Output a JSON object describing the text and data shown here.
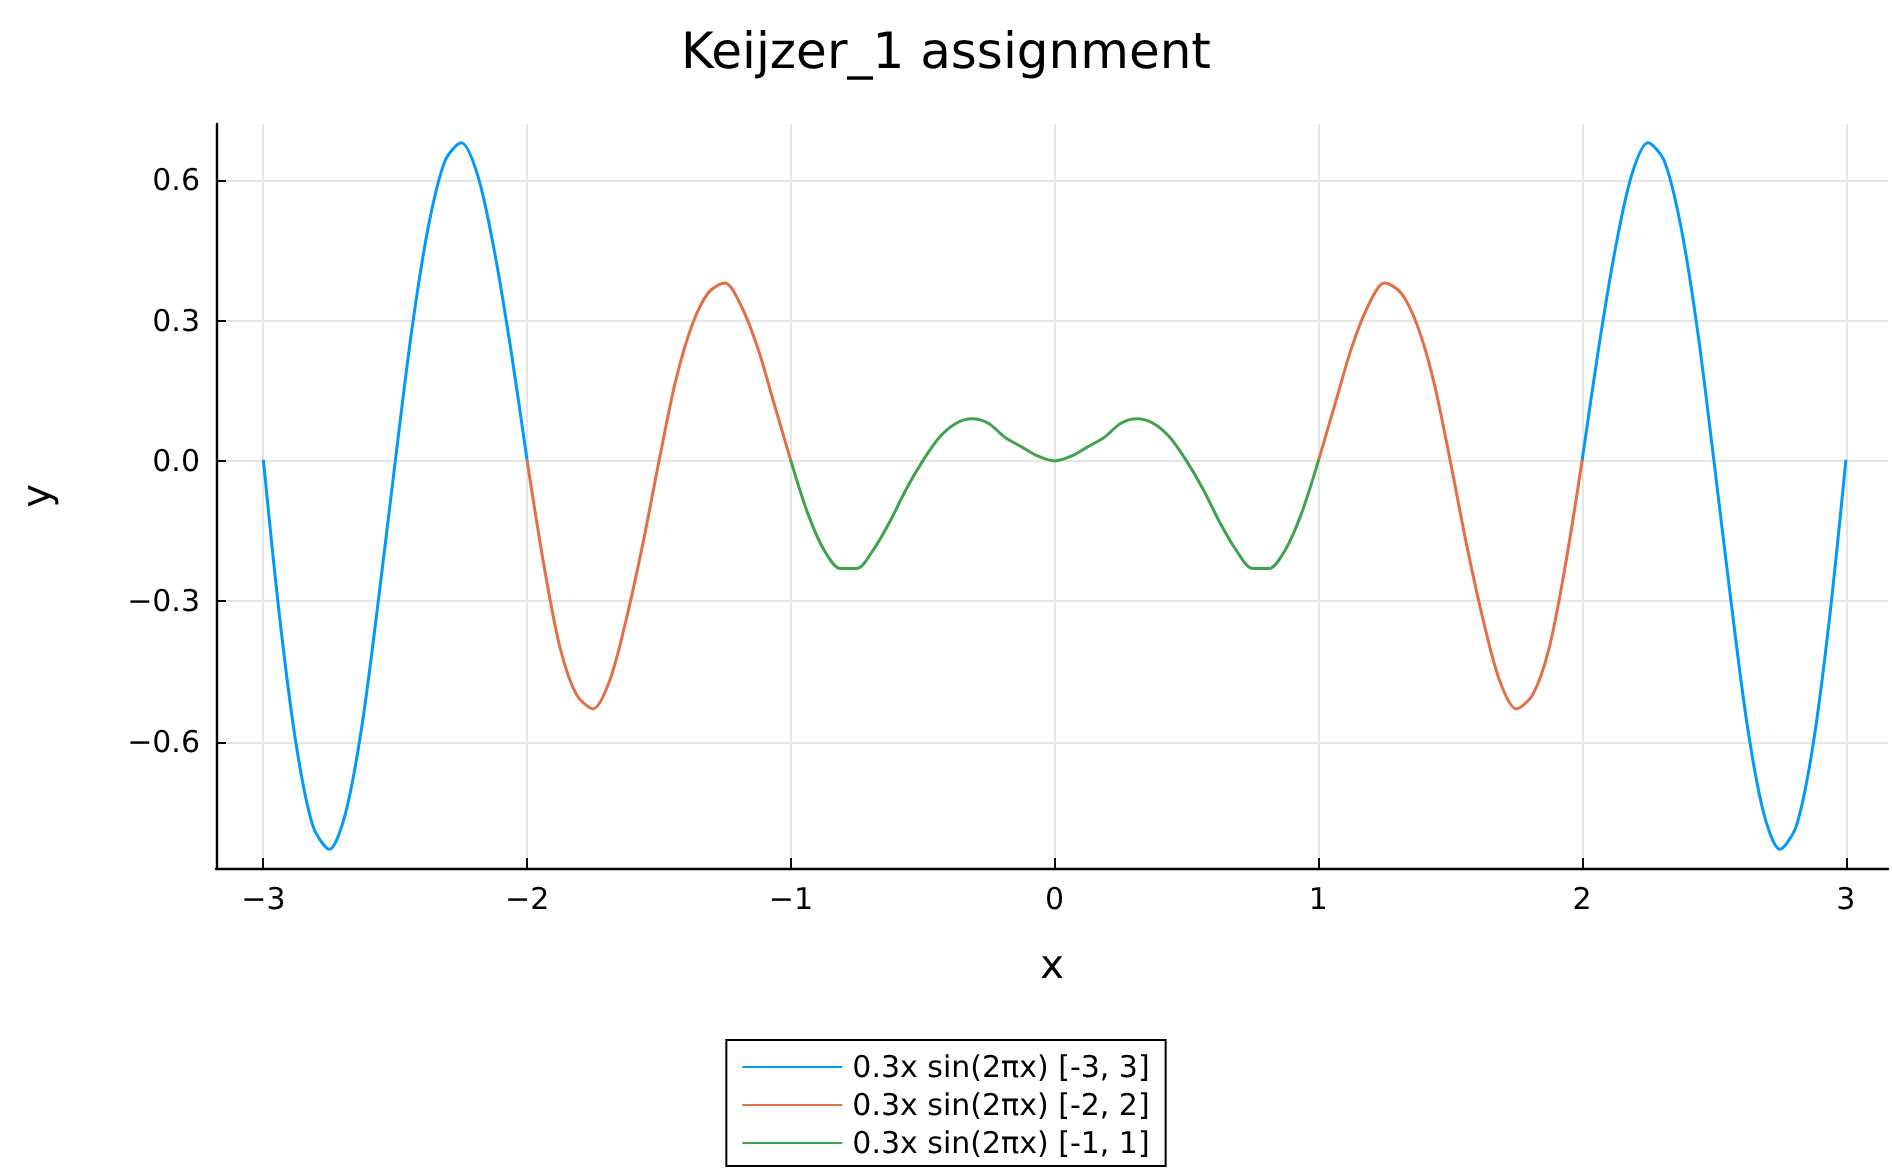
{
  "chart_data": {
    "type": "line",
    "title": "Keijzer_1 assignment",
    "xlabel": "x",
    "ylabel": "y",
    "xlim": [
      -3.18,
      3.16
    ],
    "ylim": [
      -0.87,
      0.72
    ],
    "xticks": [
      {
        "value": -3,
        "label": "−3"
      },
      {
        "value": -2,
        "label": "−2"
      },
      {
        "value": -1,
        "label": "−1"
      },
      0,
      1,
      2,
      3
    ],
    "yticks": [
      {
        "value": -0.6,
        "label": "−0.6"
      },
      {
        "value": -0.3,
        "label": "−0.3"
      },
      {
        "value": 0,
        "label": "0.0"
      },
      0.3,
      0.6
    ],
    "grid": true,
    "legend": "bottom",
    "marker": "none",
    "line_style": "solid",
    "series": [
      {
        "name": "0.3x sin(2πx) [-3, 3]",
        "color": "#009af9",
        "x": [
          -3,
          -2.9375,
          -2.875,
          -2.8125,
          -2.75,
          -2.6875,
          -2.625,
          -2.5625,
          -2.5,
          -2.4375,
          -2.375,
          -2.3125,
          -2.25,
          -2.1875,
          -2.125,
          -2.0625,
          -2,
          -1.9375,
          -1.875,
          -1.8125,
          -1.75,
          -1.6875,
          -1.625,
          -1.5625,
          -1.5,
          -1.4375,
          -1.375,
          -1.3125,
          -1.25,
          -1.1875,
          -1.125,
          -1.0625,
          -1,
          -0.9375,
          -0.875,
          -0.8125,
          -0.75,
          -0.6875,
          -0.625,
          -0.5625,
          -0.5,
          -0.4375,
          -0.375,
          -0.3125,
          -0.25,
          -0.1875,
          -0.125,
          -0.0625,
          0,
          0.0625,
          0.125,
          0.1875,
          0.25,
          0.3125,
          0.375,
          0.4375,
          0.5,
          0.5625,
          0.625,
          0.6875,
          0.75,
          0.8125,
          0.875,
          0.9375,
          1,
          1.0625,
          1.125,
          1.1875,
          1.25,
          1.3125,
          1.375,
          1.4375,
          1.5,
          1.5625,
          1.625,
          1.6875,
          1.75,
          1.8125,
          1.875,
          1.9375,
          2,
          2.0625,
          2.125,
          2.1875,
          2.25,
          2.3125,
          2.375,
          2.4375,
          2.5,
          2.5625,
          2.625,
          2.6875,
          2.75,
          2.8125,
          2.875,
          2.9375,
          3
        ],
        "values": [
          0,
          -0.34,
          -0.61,
          -0.78,
          -0.83,
          -0.75,
          -0.56,
          -0.29,
          0,
          0.28,
          0.5,
          0.64,
          0.68,
          0.61,
          0.45,
          0.24,
          0,
          null,
          null,
          null,
          null,
          null,
          null,
          null,
          null,
          null,
          null,
          null,
          null,
          null,
          null,
          null,
          null,
          null,
          null,
          null,
          null,
          null,
          null,
          null,
          null,
          null,
          null,
          null,
          null,
          null,
          null,
          null,
          null,
          null,
          null,
          null,
          null,
          null,
          null,
          null,
          null,
          null,
          null,
          null,
          null,
          null,
          null,
          null,
          null,
          null,
          null,
          null,
          null,
          null,
          null,
          null,
          null,
          null,
          null,
          null,
          null,
          null,
          null,
          null,
          0,
          0.24,
          0.45,
          0.61,
          0.68,
          0.64,
          0.5,
          0.28,
          0,
          -0.29,
          -0.56,
          -0.75,
          -0.83,
          -0.78,
          -0.61,
          -0.34,
          0
        ]
      },
      {
        "name": "0.3x sin(2πx) [-2, 2]",
        "color": "#e26f46",
        "x": [
          -2,
          -1.9375,
          -1.875,
          -1.8125,
          -1.75,
          -1.6875,
          -1.625,
          -1.5625,
          -1.5,
          -1.4375,
          -1.375,
          -1.3125,
          -1.25,
          -1.1875,
          -1.125,
          -1.0625,
          -1,
          -0.9375,
          -0.875,
          -0.8125,
          -0.75,
          -0.6875,
          -0.625,
          -0.5625,
          -0.5,
          -0.4375,
          -0.375,
          -0.3125,
          -0.25,
          -0.1875,
          -0.125,
          -0.0625,
          0,
          0.0625,
          0.125,
          0.1875,
          0.25,
          0.3125,
          0.375,
          0.4375,
          0.5,
          0.5625,
          0.625,
          0.6875,
          0.75,
          0.8125,
          0.875,
          0.9375,
          1,
          1.0625,
          1.125,
          1.1875,
          1.25,
          1.3125,
          1.375,
          1.4375,
          1.5,
          1.5625,
          1.625,
          1.6875,
          1.75,
          1.8125,
          1.875,
          1.9375,
          2
        ],
        "values": [
          0,
          -0.22,
          -0.4,
          -0.5,
          -0.53,
          -0.47,
          -0.34,
          -0.18,
          0,
          0.17,
          0.29,
          0.36,
          0.38,
          0.33,
          0.24,
          0.12,
          0,
          null,
          null,
          null,
          null,
          null,
          null,
          null,
          null,
          null,
          null,
          null,
          null,
          null,
          null,
          null,
          null,
          null,
          null,
          null,
          null,
          null,
          null,
          null,
          null,
          null,
          null,
          null,
          null,
          null,
          null,
          null,
          0,
          0.12,
          0.24,
          0.33,
          0.38,
          0.36,
          0.29,
          0.17,
          0,
          -0.18,
          -0.34,
          -0.47,
          -0.53,
          -0.5,
          -0.4,
          -0.22,
          0
        ]
      },
      {
        "name": "0.3x sin(2πx) [-1, 1]",
        "color": "#3da44d",
        "x": [
          -1,
          -0.9375,
          -0.875,
          -0.8125,
          -0.75,
          -0.6875,
          -0.625,
          -0.5625,
          -0.5,
          -0.4375,
          -0.375,
          -0.3125,
          -0.25,
          -0.1875,
          -0.125,
          -0.0625,
          0,
          0.0625,
          0.125,
          0.1875,
          0.25,
          0.3125,
          0.375,
          0.4375,
          0.5,
          0.5625,
          0.625,
          0.6875,
          0.75,
          0.8125,
          0.875,
          0.9375,
          1
        ],
        "values": [
          0,
          -0.11,
          -0.19,
          -0.23,
          -0.23,
          -0.19,
          -0.13,
          -0.06,
          0,
          0.05,
          0.08,
          0.09,
          0.08,
          0.05,
          0.03,
          0.01,
          0,
          0.01,
          0.03,
          0.05,
          0.08,
          0.09,
          0.08,
          0.05,
          0,
          -0.06,
          -0.13,
          -0.19,
          -0.23,
          -0.23,
          -0.19,
          -0.11,
          0
        ]
      }
    ]
  }
}
